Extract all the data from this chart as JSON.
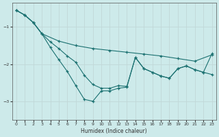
{
  "xlabel": "Humidex (Indice chaleur)",
  "xlim": [
    -0.5,
    23.5
  ],
  "ylim": [
    -3.5,
    -0.35
  ],
  "yticks": [
    -3,
    -2,
    -1
  ],
  "xticks": [
    0,
    1,
    2,
    3,
    4,
    5,
    6,
    7,
    8,
    9,
    10,
    11,
    12,
    13,
    14,
    15,
    16,
    17,
    18,
    19,
    20,
    21,
    22,
    23
  ],
  "background_color": "#cdeaea",
  "grid_color": "#b8d8d8",
  "line_color": "#1a7070",
  "line1_x": [
    0,
    1,
    2,
    3,
    5,
    7,
    9,
    11,
    13,
    15,
    17,
    19,
    21,
    23
  ],
  "line1_y": [
    -0.55,
    -0.68,
    -0.88,
    -1.18,
    -1.38,
    -1.5,
    -1.58,
    -1.63,
    -1.68,
    -1.73,
    -1.78,
    -1.85,
    -1.92,
    -1.75
  ],
  "line2_x": [
    0,
    1,
    2,
    3,
    4,
    5,
    6,
    7,
    8,
    9,
    10,
    11,
    12,
    13,
    14,
    15,
    16,
    17,
    18,
    19,
    20,
    21,
    22,
    23
  ],
  "line2_y": [
    -0.55,
    -0.68,
    -0.88,
    -1.18,
    -1.4,
    -1.58,
    -1.78,
    -1.95,
    -2.3,
    -2.55,
    -2.65,
    -2.65,
    -2.58,
    -2.6,
    -1.82,
    -2.12,
    -2.22,
    -2.32,
    -2.38,
    -2.12,
    -2.05,
    -2.15,
    -2.22,
    -1.72
  ],
  "line3_x": [
    0,
    1,
    2,
    3,
    4,
    5,
    6,
    7,
    8,
    9,
    10,
    11,
    12,
    13,
    14,
    15,
    16,
    17,
    18,
    19,
    20,
    21,
    22,
    23
  ],
  "line3_y": [
    -0.55,
    -0.68,
    -0.88,
    -1.18,
    -1.55,
    -1.88,
    -2.2,
    -2.58,
    -2.95,
    -3.0,
    -2.72,
    -2.72,
    -2.65,
    -2.62,
    -1.82,
    -2.12,
    -2.22,
    -2.32,
    -2.38,
    -2.12,
    -2.05,
    -2.15,
    -2.22,
    -2.28
  ]
}
